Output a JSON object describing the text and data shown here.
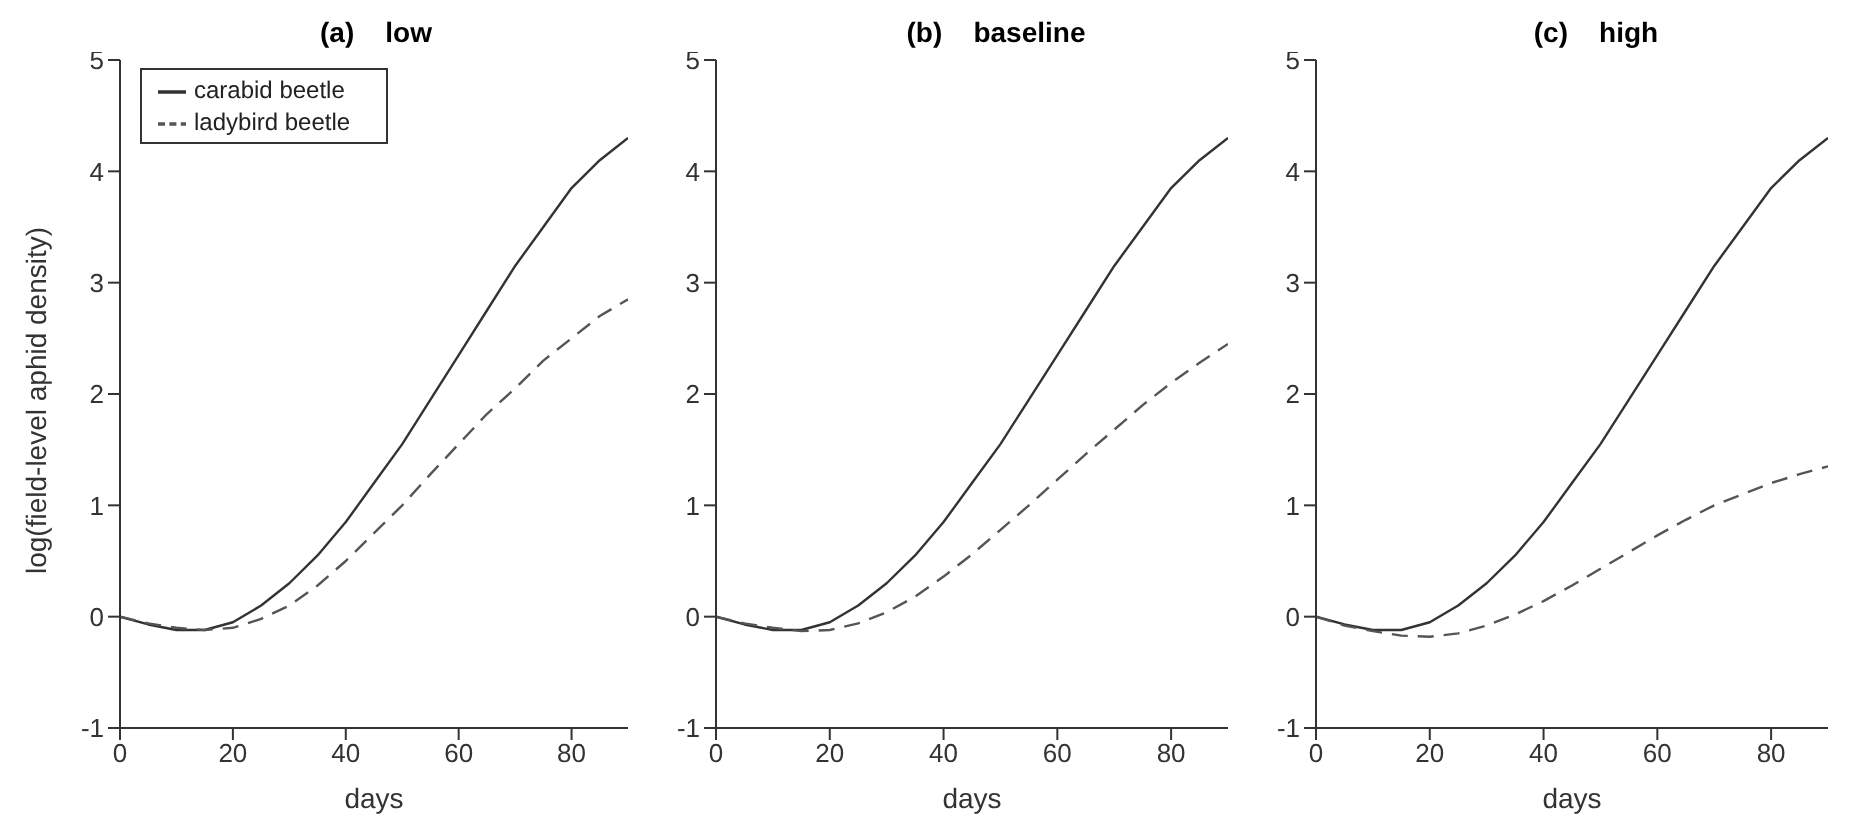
{
  "chart_data": [
    {
      "type": "line",
      "title": "(a)    low",
      "xlabel": "days",
      "ylabel": "log(field-level aphid density)",
      "x": [
        0,
        5,
        10,
        15,
        20,
        25,
        30,
        35,
        40,
        45,
        50,
        55,
        60,
        65,
        70,
        75,
        80,
        85,
        90
      ],
      "xlim": [
        0,
        90
      ],
      "xticks": [
        0,
        20,
        40,
        60,
        80
      ],
      "ylim": [
        -1,
        5
      ],
      "yticks": [
        -1,
        0,
        1,
        2,
        3,
        4,
        5
      ],
      "grid": false,
      "legend": "top left",
      "marker": "none",
      "series": [
        {
          "name": "carabid beetle",
          "color": "#333333",
          "line_style": "solid",
          "values": [
            0,
            -0.07,
            -0.12,
            -0.12,
            -0.05,
            0.1,
            0.3,
            0.55,
            0.85,
            1.2,
            1.55,
            1.95,
            2.35,
            2.75,
            3.15,
            3.5,
            3.85,
            4.1,
            4.3
          ]
        },
        {
          "name": "ladybird beetle",
          "color": "#555555",
          "line_style": "dashed",
          "values": [
            0,
            -0.06,
            -0.1,
            -0.12,
            -0.1,
            -0.02,
            0.1,
            0.28,
            0.5,
            0.75,
            1.0,
            1.28,
            1.55,
            1.82,
            2.05,
            2.3,
            2.5,
            2.7,
            2.85
          ]
        }
      ]
    },
    {
      "type": "line",
      "title": "(b)    baseline",
      "xlabel": "days",
      "x": [
        0,
        5,
        10,
        15,
        20,
        25,
        30,
        35,
        40,
        45,
        50,
        55,
        60,
        65,
        70,
        75,
        80,
        85,
        90
      ],
      "xlim": [
        0,
        90
      ],
      "xticks": [
        0,
        20,
        40,
        60,
        80
      ],
      "ylim": [
        -1,
        5
      ],
      "yticks": [
        -1,
        0,
        1,
        2,
        3,
        4,
        5
      ],
      "grid": false,
      "legend": false,
      "marker": "none",
      "series": [
        {
          "color": "#333333",
          "line_style": "solid",
          "values": [
            0,
            -0.07,
            -0.12,
            -0.12,
            -0.05,
            0.1,
            0.3,
            0.55,
            0.85,
            1.2,
            1.55,
            1.95,
            2.35,
            2.75,
            3.15,
            3.5,
            3.85,
            4.1,
            4.3
          ]
        },
        {
          "color": "#555555",
          "line_style": "dashed",
          "values": [
            0,
            -0.06,
            -0.1,
            -0.13,
            -0.12,
            -0.06,
            0.04,
            0.18,
            0.36,
            0.56,
            0.78,
            1.0,
            1.23,
            1.46,
            1.68,
            1.9,
            2.1,
            2.28,
            2.45
          ]
        }
      ]
    },
    {
      "type": "line",
      "title": "(c)    high",
      "xlabel": "days",
      "x": [
        0,
        5,
        10,
        15,
        20,
        25,
        30,
        35,
        40,
        45,
        50,
        55,
        60,
        65,
        70,
        75,
        80,
        85,
        90
      ],
      "xlim": [
        0,
        90
      ],
      "xticks": [
        0,
        20,
        40,
        60,
        80
      ],
      "ylim": [
        -1,
        5
      ],
      "yticks": [
        -1,
        0,
        1,
        2,
        3,
        4,
        5
      ],
      "grid": false,
      "legend": false,
      "marker": "none",
      "series": [
        {
          "color": "#333333",
          "line_style": "solid",
          "values": [
            0,
            -0.07,
            -0.12,
            -0.12,
            -0.05,
            0.1,
            0.3,
            0.55,
            0.85,
            1.2,
            1.55,
            1.95,
            2.35,
            2.75,
            3.15,
            3.5,
            3.85,
            4.1,
            4.3
          ]
        },
        {
          "color": "#555555",
          "line_style": "dashed",
          "values": [
            0,
            -0.08,
            -0.13,
            -0.17,
            -0.18,
            -0.15,
            -0.08,
            0.02,
            0.14,
            0.28,
            0.43,
            0.58,
            0.73,
            0.87,
            1.0,
            1.1,
            1.2,
            1.28,
            1.35
          ]
        }
      ]
    }
  ]
}
